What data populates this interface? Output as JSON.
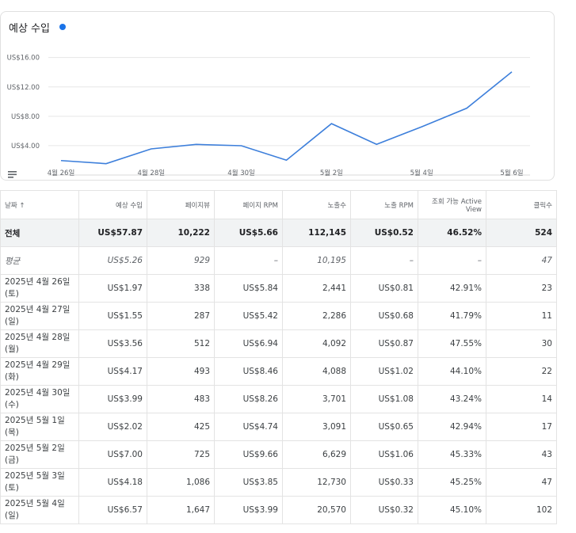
{
  "card": {
    "title": "예상 수입",
    "accent": "#1a73e8"
  },
  "chart_data": {
    "type": "line",
    "title": "예상 수입",
    "x": [
      "4월 26일",
      "4월 27일",
      "4월 28일",
      "4월 29일",
      "4월 30일",
      "5월 1일",
      "5월 2일",
      "5월 3일",
      "5월 4일",
      "5월 5일",
      "5월 6일"
    ],
    "xticks": [
      "4월 26일",
      "4월 28일",
      "4월 30일",
      "5월 2일",
      "5월 4일",
      "5월 6일"
    ],
    "values": [
      1.97,
      1.55,
      3.56,
      4.17,
      3.99,
      2.02,
      7.0,
      4.18,
      6.57,
      9.1,
      14.05
    ],
    "yticks": [
      "US$4.00",
      "US$8.00",
      "US$12.00",
      "US$16.00"
    ],
    "ylim": [
      0,
      16
    ],
    "color": "#3d7fdb",
    "grid": true
  },
  "table": {
    "headers": [
      "날짜 ↑",
      "예상 수입",
      "페이지뷰",
      "페이지 RPM",
      "노출수",
      "노출 RPM",
      "조회 가능 Active View",
      "클릭수"
    ],
    "total": [
      "전체",
      "US$57.87",
      "10,222",
      "US$5.66",
      "112,145",
      "US$0.52",
      "46.52%",
      "524"
    ],
    "average": [
      "평균",
      "US$5.26",
      "929",
      "–",
      "10,195",
      "–",
      "–",
      "47"
    ],
    "rows": [
      [
        "2025년 4월 26일 (토)",
        "US$1.97",
        "338",
        "US$5.84",
        "2,441",
        "US$0.81",
        "42.91%",
        "23"
      ],
      [
        "2025년 4월 27일 (일)",
        "US$1.55",
        "287",
        "US$5.42",
        "2,286",
        "US$0.68",
        "41.79%",
        "11"
      ],
      [
        "2025년 4월 28일 (월)",
        "US$3.56",
        "512",
        "US$6.94",
        "4,092",
        "US$0.87",
        "47.55%",
        "30"
      ],
      [
        "2025년 4월 29일 (화)",
        "US$4.17",
        "493",
        "US$8.46",
        "4,088",
        "US$1.02",
        "44.10%",
        "22"
      ],
      [
        "2025년 4월 30일 (수)",
        "US$3.99",
        "483",
        "US$8.26",
        "3,701",
        "US$1.08",
        "43.24%",
        "14"
      ],
      [
        "2025년 5월 1일 (목)",
        "US$2.02",
        "425",
        "US$4.74",
        "3,091",
        "US$0.65",
        "42.94%",
        "17"
      ],
      [
        "2025년 5월 2일 (금)",
        "US$7.00",
        "725",
        "US$9.66",
        "6,629",
        "US$1.06",
        "45.33%",
        "43"
      ],
      [
        "2025년 5월 3일 (토)",
        "US$4.18",
        "1,086",
        "US$3.85",
        "12,730",
        "US$0.33",
        "45.25%",
        "47"
      ],
      [
        "2025년 5월 4일 (일)",
        "US$6.57",
        "1,647",
        "US$3.99",
        "20,570",
        "US$0.32",
        "45.10%",
        "102"
      ]
    ]
  }
}
